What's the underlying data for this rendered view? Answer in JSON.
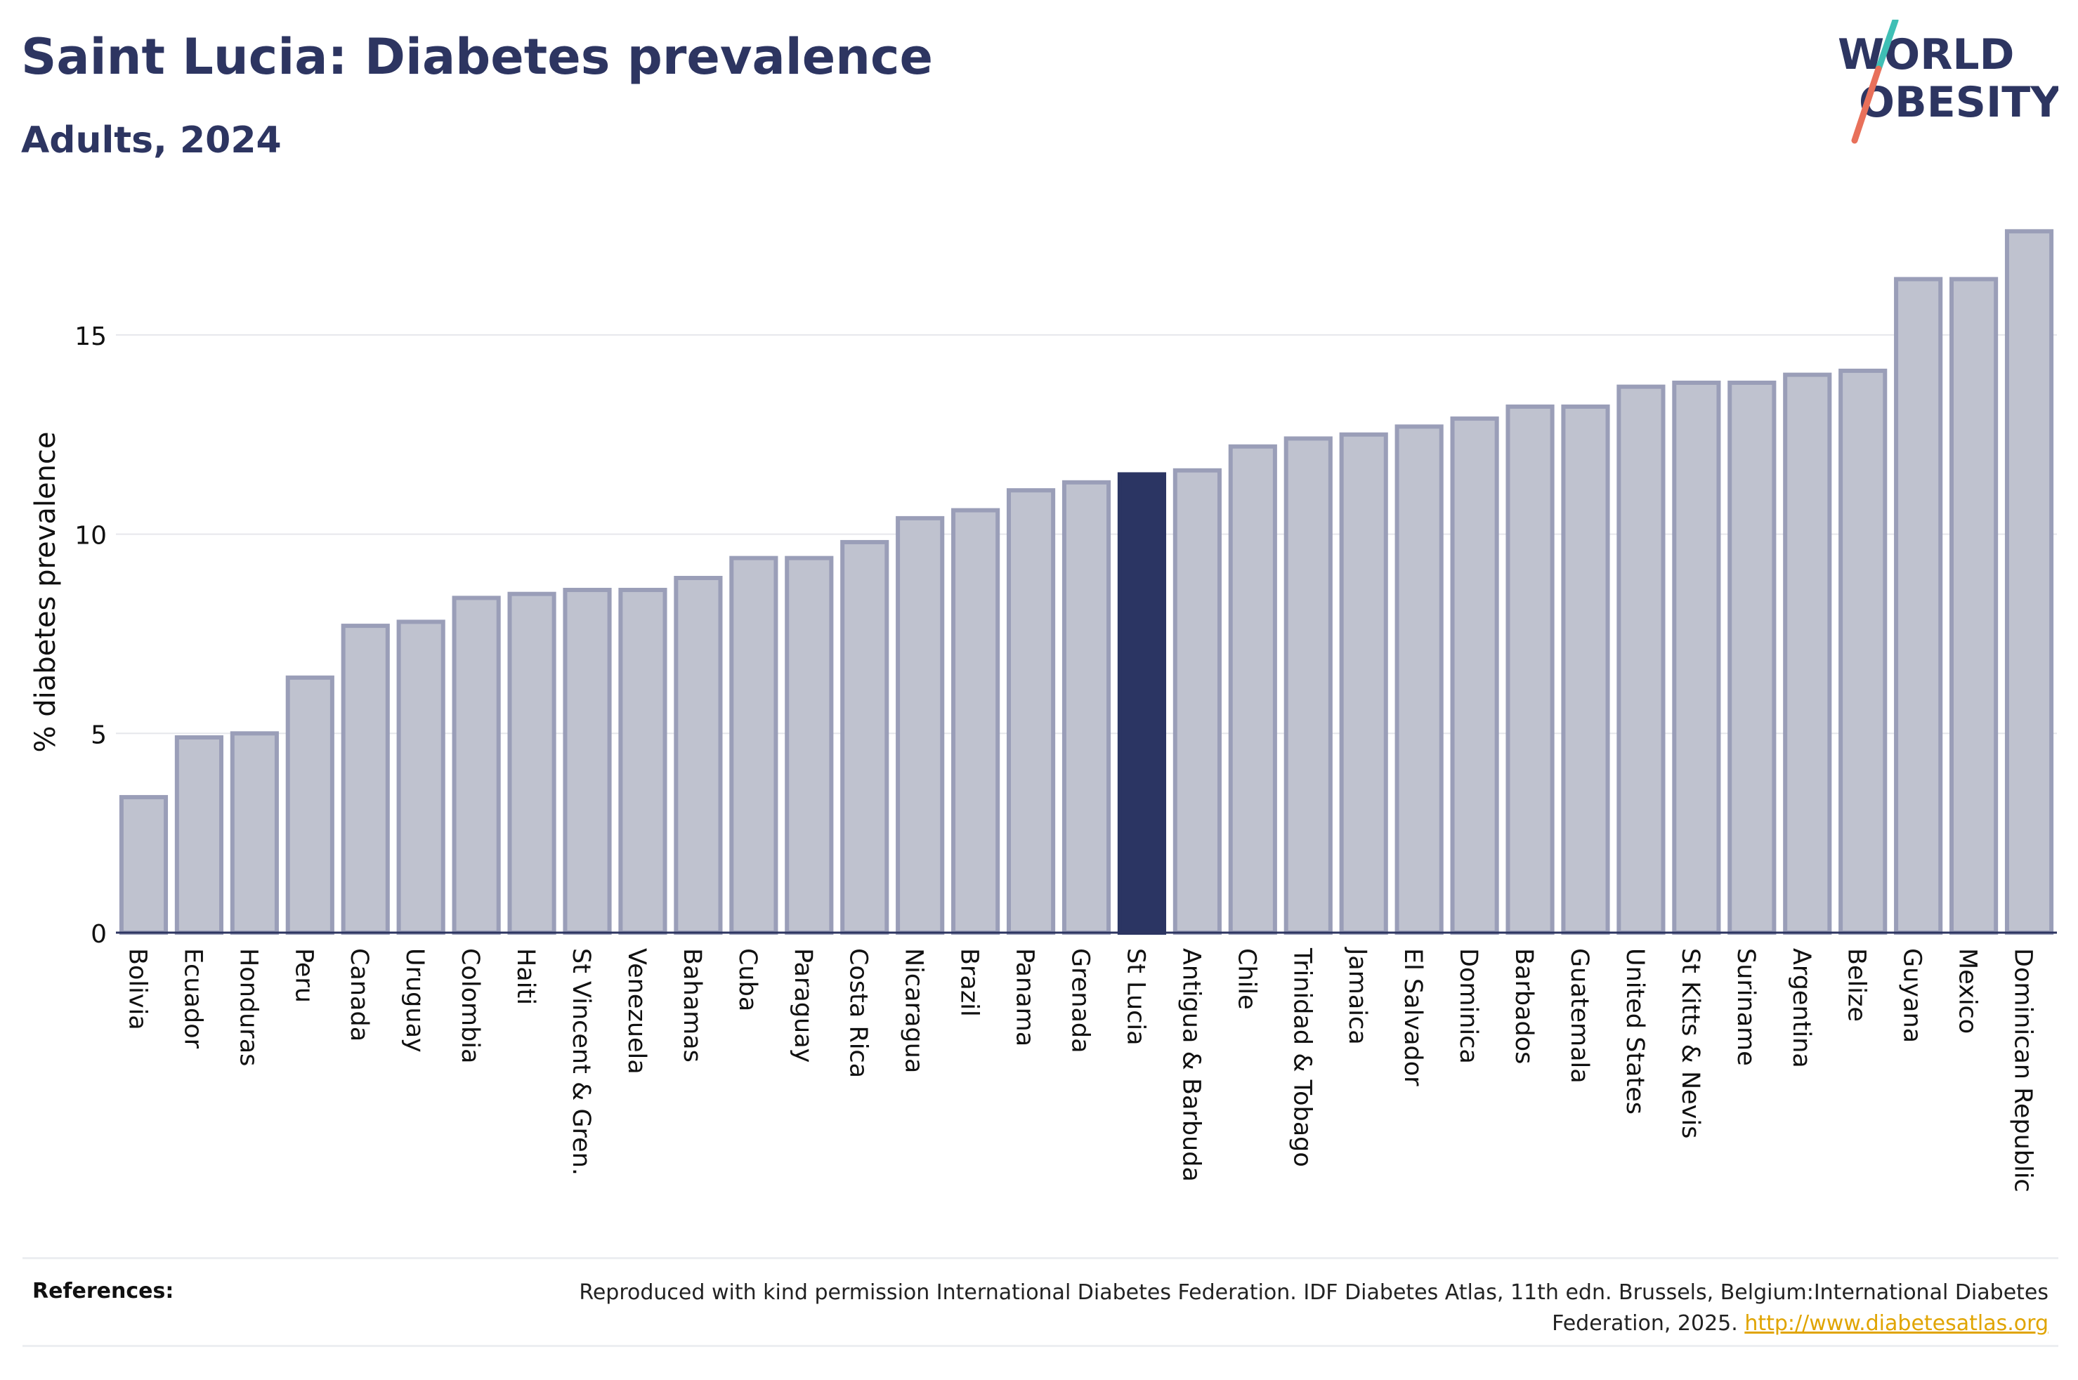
{
  "header": {
    "title": "Saint Lucia: Diabetes prevalence",
    "subtitle": "Adults, 2024"
  },
  "logo": {
    "line1": "WORLD",
    "line2": "OBESITY"
  },
  "colors": {
    "title": "#2d3561",
    "bar_default": "#bfc2cf",
    "bar_border": "#9a9eb8",
    "bar_highlight": "#2b3563",
    "logo_slash_top": "#3fbfb5",
    "logo_slash_bottom": "#e8705a",
    "link": "#e0a400"
  },
  "chart_data": {
    "type": "bar",
    "title": "Saint Lucia: Diabetes prevalence",
    "subtitle": "Adults, 2024",
    "xlabel": "",
    "ylabel": "% diabetes prevalence",
    "ylim": [
      0,
      17.8
    ],
    "yticks": [
      0,
      5,
      10,
      15
    ],
    "grid": true,
    "highlight": "St Lucia",
    "categories": [
      "Bolivia",
      "Ecuador",
      "Honduras",
      "Peru",
      "Canada",
      "Uruguay",
      "Colombia",
      "Haiti",
      "St Vincent & Gren.",
      "Venezuela",
      "Bahamas",
      "Cuba",
      "Paraguay",
      "Costa Rica",
      "Nicaragua",
      "Brazil",
      "Panama",
      "Grenada",
      "St Lucia",
      "Antigua & Barbuda",
      "Chile",
      "Trinidad & Tobago",
      "Jamaica",
      "El Salvador",
      "Dominica",
      "Barbados",
      "Guatemala",
      "United States",
      "St Kitts & Nevis",
      "Suriname",
      "Argentina",
      "Belize",
      "Guyana",
      "Mexico",
      "Dominican Republic"
    ],
    "values": [
      3.4,
      4.9,
      5.0,
      6.4,
      7.7,
      7.8,
      8.4,
      8.5,
      8.6,
      8.6,
      8.9,
      9.4,
      9.4,
      9.8,
      10.4,
      10.6,
      11.1,
      11.3,
      11.5,
      11.6,
      12.2,
      12.4,
      12.5,
      12.7,
      12.9,
      13.2,
      13.2,
      13.7,
      13.8,
      13.8,
      14.0,
      14.1,
      16.4,
      16.4,
      17.6
    ]
  },
  "references": {
    "label": "References:",
    "text": "Reproduced with kind permission International Diabetes Federation. IDF Diabetes Atlas, 11th edn. Brussels, Belgium:International Diabetes Federation, 2025.",
    "link": "http://www.diabetesatlas.org"
  }
}
